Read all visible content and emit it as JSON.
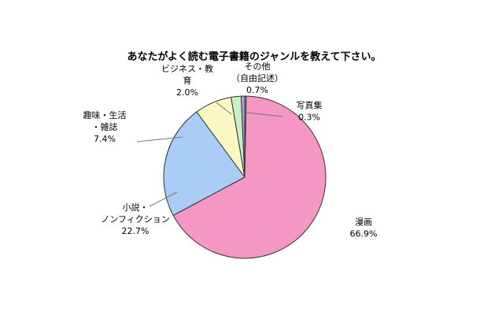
{
  "chart_data": {
    "type": "pie",
    "title": "あなたがよく読む電子書籍のジャンルを教えて下さい。",
    "slices": [
      {
        "key": "manga",
        "label_lines": [
          "漫画"
        ],
        "value_label": "66.9%",
        "value": 66.9,
        "color": "#f597c4"
      },
      {
        "key": "novel",
        "label_lines": [
          "小説・",
          "ノンフィクション"
        ],
        "value_label": "22.7%",
        "value": 22.7,
        "color": "#a9cdf6"
      },
      {
        "key": "hobby",
        "label_lines": [
          "趣味・生活",
          "・雑誌"
        ],
        "value_label": "7.4%",
        "value": 7.4,
        "color": "#fbf8c4"
      },
      {
        "key": "business",
        "label_lines": [
          "ビジネス・教",
          "育"
        ],
        "value_label": "2.0%",
        "value": 2.0,
        "color": "#c7f0c6"
      },
      {
        "key": "other",
        "label_lines": [
          "その他",
          "（自由記述）"
        ],
        "value_label": "0.7%",
        "value": 0.7,
        "color": "#b49ee6"
      },
      {
        "key": "photo",
        "label_lines": [
          "写真集"
        ],
        "value_label": "0.3%",
        "value": 0.3,
        "color": "#7fa6d6"
      }
    ]
  }
}
